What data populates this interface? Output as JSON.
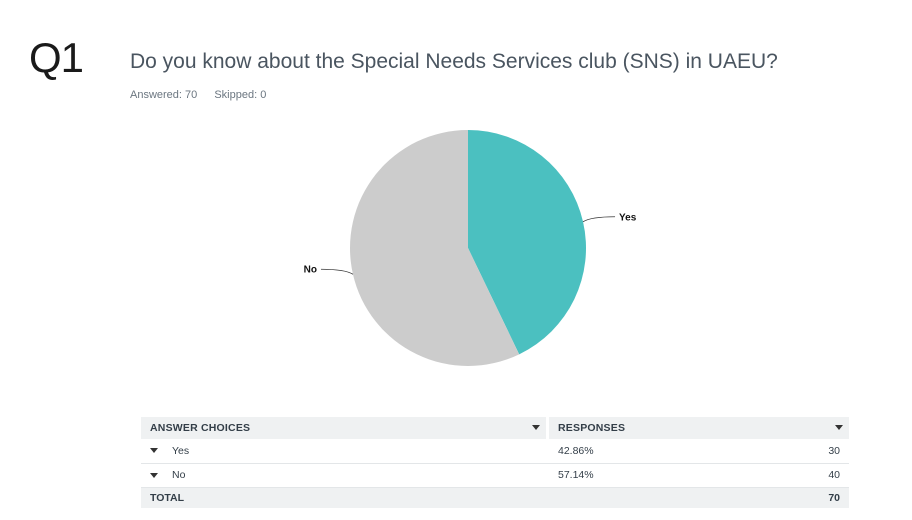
{
  "question": {
    "number": "Q1",
    "title": "Do you know about the Special Needs Services club (SNS) in UAEU?",
    "answered": "Answered: 70",
    "skipped": "Skipped: 0"
  },
  "chart_data": {
    "type": "pie",
    "categories": [
      "Yes",
      "No"
    ],
    "values": [
      42.86,
      57.14
    ],
    "colors": [
      "#4bc0c0",
      "#cccccc"
    ],
    "title": "",
    "start_angle_deg": 0,
    "direction": "clockwise"
  },
  "table": {
    "headers": {
      "choices": "ANSWER CHOICES",
      "responses": "RESPONSES"
    },
    "rows": [
      {
        "choice": "Yes",
        "percent": "42.86%",
        "count": "30"
      },
      {
        "choice": "No",
        "percent": "57.14%",
        "count": "40"
      }
    ],
    "total": {
      "label": "TOTAL",
      "count": "70"
    }
  }
}
